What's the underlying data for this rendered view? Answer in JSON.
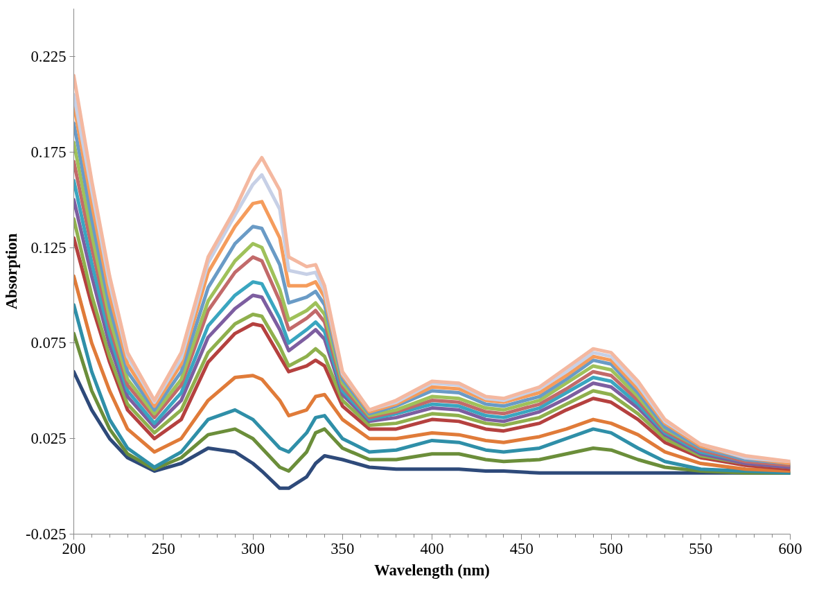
{
  "chart_data": {
    "type": "line",
    "xlabel": "Wavelength (nm)",
    "ylabel": "Absorption",
    "x": [
      200,
      210,
      220,
      230,
      245,
      260,
      275,
      290,
      300,
      305,
      315,
      320,
      330,
      335,
      340,
      350,
      365,
      380,
      400,
      415,
      430,
      440,
      460,
      475,
      490,
      500,
      515,
      530,
      550,
      575,
      600
    ],
    "xlim": [
      200,
      600
    ],
    "xticks": [
      200,
      250,
      300,
      350,
      400,
      450,
      500,
      550,
      600
    ],
    "ylim": [
      -0.025,
      0.25
    ],
    "yticks": [
      -0.025,
      0.025,
      0.075,
      0.125,
      0.175,
      0.225
    ],
    "grid": false,
    "marker": "none",
    "line_style": "solid",
    "series": [
      {
        "color": "#2e4a7a",
        "values": [
          0.06,
          0.04,
          0.025,
          0.015,
          0.008,
          0.012,
          0.02,
          0.018,
          0.012,
          0.008,
          -0.001,
          -0.001,
          0.005,
          0.012,
          0.016,
          0.014,
          0.01,
          0.009,
          0.009,
          0.009,
          0.008,
          0.008,
          0.007,
          0.007,
          0.007,
          0.007,
          0.007,
          0.007,
          0.007,
          0.007,
          0.007
        ]
      },
      {
        "color": "#6b8e3a",
        "values": [
          0.08,
          0.05,
          0.03,
          0.017,
          0.009,
          0.015,
          0.027,
          0.03,
          0.025,
          0.02,
          0.01,
          0.008,
          0.018,
          0.028,
          0.03,
          0.02,
          0.014,
          0.014,
          0.017,
          0.017,
          0.014,
          0.013,
          0.014,
          0.017,
          0.02,
          0.019,
          0.014,
          0.01,
          0.008,
          0.007,
          0.007
        ]
      },
      {
        "color": "#2f8fa8",
        "values": [
          0.095,
          0.06,
          0.035,
          0.02,
          0.01,
          0.018,
          0.035,
          0.04,
          0.035,
          0.03,
          0.02,
          0.018,
          0.028,
          0.036,
          0.037,
          0.025,
          0.018,
          0.019,
          0.024,
          0.023,
          0.019,
          0.018,
          0.02,
          0.025,
          0.03,
          0.028,
          0.02,
          0.013,
          0.009,
          0.008,
          0.007
        ]
      },
      {
        "color": "#e07b39",
        "values": [
          0.11,
          0.075,
          0.05,
          0.03,
          0.018,
          0.025,
          0.045,
          0.057,
          0.058,
          0.056,
          0.045,
          0.037,
          0.04,
          0.047,
          0.048,
          0.035,
          0.025,
          0.025,
          0.028,
          0.027,
          0.024,
          0.023,
          0.026,
          0.03,
          0.035,
          0.033,
          0.027,
          0.018,
          0.012,
          0.009,
          0.008
        ]
      },
      {
        "color": "#b5413f",
        "values": [
          0.13,
          0.095,
          0.065,
          0.04,
          0.025,
          0.035,
          0.065,
          0.08,
          0.085,
          0.084,
          0.068,
          0.06,
          0.063,
          0.066,
          0.063,
          0.042,
          0.03,
          0.03,
          0.035,
          0.034,
          0.03,
          0.029,
          0.033,
          0.04,
          0.046,
          0.044,
          0.035,
          0.023,
          0.015,
          0.011,
          0.009
        ]
      },
      {
        "color": "#8fb04d",
        "values": [
          0.14,
          0.1,
          0.068,
          0.043,
          0.028,
          0.04,
          0.07,
          0.085,
          0.09,
          0.089,
          0.073,
          0.063,
          0.068,
          0.072,
          0.068,
          0.045,
          0.032,
          0.033,
          0.038,
          0.037,
          0.033,
          0.032,
          0.036,
          0.043,
          0.05,
          0.048,
          0.038,
          0.025,
          0.016,
          0.012,
          0.01
        ]
      },
      {
        "color": "#7d5ea0",
        "values": [
          0.15,
          0.11,
          0.074,
          0.047,
          0.031,
          0.045,
          0.078,
          0.093,
          0.1,
          0.099,
          0.082,
          0.071,
          0.078,
          0.082,
          0.077,
          0.048,
          0.034,
          0.036,
          0.041,
          0.04,
          0.035,
          0.034,
          0.039,
          0.046,
          0.054,
          0.052,
          0.041,
          0.027,
          0.017,
          0.012,
          0.01
        ]
      },
      {
        "color": "#3aa6c0",
        "values": [
          0.16,
          0.117,
          0.079,
          0.05,
          0.033,
          0.049,
          0.084,
          0.1,
          0.107,
          0.106,
          0.088,
          0.075,
          0.082,
          0.086,
          0.081,
          0.05,
          0.035,
          0.038,
          0.043,
          0.042,
          0.037,
          0.036,
          0.041,
          0.049,
          0.057,
          0.055,
          0.043,
          0.028,
          0.018,
          0.013,
          0.011
        ]
      },
      {
        "color": "#c26a6a",
        "values": [
          0.17,
          0.125,
          0.084,
          0.053,
          0.036,
          0.053,
          0.092,
          0.112,
          0.12,
          0.118,
          0.097,
          0.082,
          0.088,
          0.092,
          0.086,
          0.052,
          0.036,
          0.039,
          0.045,
          0.044,
          0.039,
          0.038,
          0.043,
          0.051,
          0.06,
          0.058,
          0.045,
          0.029,
          0.019,
          0.013,
          0.011
        ]
      },
      {
        "color": "#9fc15a",
        "values": [
          0.18,
          0.132,
          0.088,
          0.056,
          0.038,
          0.056,
          0.097,
          0.118,
          0.127,
          0.125,
          0.103,
          0.087,
          0.092,
          0.096,
          0.09,
          0.054,
          0.037,
          0.04,
          0.047,
          0.046,
          0.041,
          0.04,
          0.045,
          0.054,
          0.063,
          0.061,
          0.047,
          0.03,
          0.02,
          0.014,
          0.012
        ]
      },
      {
        "color": "#6a9bc6",
        "values": [
          0.19,
          0.14,
          0.094,
          0.06,
          0.04,
          0.06,
          0.104,
          0.127,
          0.136,
          0.135,
          0.116,
          0.096,
          0.099,
          0.102,
          0.095,
          0.056,
          0.038,
          0.042,
          0.05,
          0.049,
          0.043,
          0.042,
          0.047,
          0.056,
          0.066,
          0.064,
          0.049,
          0.031,
          0.02,
          0.014,
          0.012
        ]
      },
      {
        "color": "#f59c5c",
        "values": [
          0.2,
          0.148,
          0.1,
          0.064,
          0.042,
          0.064,
          0.112,
          0.136,
          0.148,
          0.149,
          0.13,
          0.105,
          0.105,
          0.107,
          0.099,
          0.058,
          0.039,
          0.043,
          0.052,
          0.051,
          0.045,
          0.044,
          0.049,
          0.058,
          0.068,
          0.066,
          0.051,
          0.033,
          0.021,
          0.015,
          0.012
        ]
      },
      {
        "color": "#c7d0e6",
        "values": [
          0.205,
          0.155,
          0.106,
          0.068,
          0.044,
          0.067,
          0.117,
          0.142,
          0.158,
          0.163,
          0.145,
          0.113,
          0.111,
          0.112,
          0.102,
          0.059,
          0.04,
          0.044,
          0.054,
          0.053,
          0.046,
          0.045,
          0.051,
          0.06,
          0.07,
          0.068,
          0.053,
          0.034,
          0.022,
          0.015,
          0.013
        ]
      },
      {
        "color": "#f4b8a0",
        "values": [
          0.215,
          0.16,
          0.11,
          0.07,
          0.045,
          0.07,
          0.12,
          0.145,
          0.165,
          0.172,
          0.155,
          0.12,
          0.115,
          0.116,
          0.105,
          0.06,
          0.04,
          0.045,
          0.055,
          0.054,
          0.047,
          0.046,
          0.052,
          0.062,
          0.072,
          0.07,
          0.055,
          0.035,
          0.022,
          0.016,
          0.013
        ]
      }
    ]
  }
}
